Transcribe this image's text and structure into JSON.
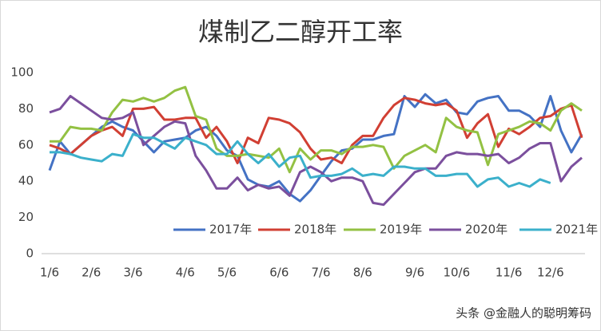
{
  "chart_data": {
    "type": "line",
    "title": "煤制乙二醇开工率",
    "watermark": "头条 @金融人的聪明筹码",
    "categories": [
      "1/6",
      null,
      null,
      null,
      "2/6",
      null,
      null,
      null,
      "3/6",
      null,
      null,
      null,
      null,
      "4/6",
      null,
      null,
      null,
      "5/6",
      null,
      null,
      null,
      null,
      "6/6",
      null,
      null,
      null,
      "7/6",
      null,
      null,
      null,
      "8/6",
      null,
      null,
      null,
      null,
      "9/6",
      null,
      null,
      null,
      "10/6",
      null,
      null,
      null,
      null,
      "11/6",
      null,
      null,
      null,
      "12/6",
      null,
      null,
      null
    ],
    "ylim": [
      0,
      100
    ],
    "yticks": [
      0,
      20,
      40,
      60,
      80,
      100
    ],
    "grid": false,
    "legend": "bottom",
    "series": [
      {
        "name": "2017年",
        "color": "#4472c4",
        "values": [
          46,
          62,
          55,
          60,
          65,
          70,
          73,
          70,
          68,
          62,
          56,
          62,
          63,
          64,
          68,
          70,
          65,
          57,
          54,
          41,
          38,
          37,
          40,
          33,
          29,
          35,
          43,
          51,
          57,
          58,
          63,
          63,
          65,
          66,
          87,
          81,
          88,
          83,
          85,
          78,
          77,
          84,
          86,
          87,
          79,
          79,
          76,
          70,
          87,
          68,
          56,
          66
        ]
      },
      {
        "name": "2018年",
        "color": "#d13f33",
        "values": [
          60,
          58,
          55,
          60,
          65,
          68,
          70,
          65,
          80,
          80,
          81,
          74,
          74,
          75,
          75,
          64,
          70,
          62,
          50,
          64,
          61,
          75,
          74,
          72,
          67,
          58,
          52,
          53,
          50,
          60,
          65,
          65,
          75,
          82,
          86,
          85,
          83,
          82,
          83,
          79,
          64,
          72,
          77,
          59,
          69,
          66,
          70,
          75,
          76,
          80,
          82,
          64
        ]
      },
      {
        "name": "2019年",
        "color": "#93c143",
        "values": [
          62,
          62,
          70,
          69,
          69,
          68,
          78,
          85,
          84,
          86,
          84,
          86,
          90,
          92,
          76,
          74,
          58,
          54,
          54,
          55,
          54,
          53,
          58,
          45,
          58,
          52,
          57,
          57,
          55,
          59,
          59,
          60,
          59,
          47,
          54,
          57,
          60,
          56,
          75,
          70,
          68,
          67,
          49,
          66,
          68,
          70,
          73,
          72,
          68,
          79,
          83,
          79
        ]
      },
      {
        "name": "2020年",
        "color": "#7b4f9d",
        "values": [
          78,
          80,
          87,
          83,
          79,
          75,
          74,
          75,
          78,
          60,
          65,
          70,
          73,
          72,
          54,
          46,
          36,
          36,
          42,
          35,
          38,
          36,
          37,
          32,
          45,
          48,
          45,
          40,
          42,
          42,
          40,
          28,
          27,
          33,
          39,
          45,
          47,
          47,
          54,
          56,
          55,
          55,
          54,
          55,
          50,
          53,
          58,
          61,
          61,
          40,
          48,
          53
        ]
      },
      {
        "name": "2021年",
        "color": "#3bb0cb",
        "values": [
          56,
          56,
          55,
          53,
          52,
          51,
          55,
          54,
          66,
          64,
          64,
          61,
          58,
          64,
          62,
          60,
          55,
          55,
          62,
          55,
          50,
          55,
          48,
          53,
          54,
          42,
          43,
          43,
          44,
          47,
          43,
          44,
          43,
          48,
          48,
          47,
          47,
          43,
          43,
          44,
          44,
          37,
          41,
          42,
          37,
          39,
          37,
          41,
          39,
          null,
          null,
          null
        ]
      }
    ]
  }
}
